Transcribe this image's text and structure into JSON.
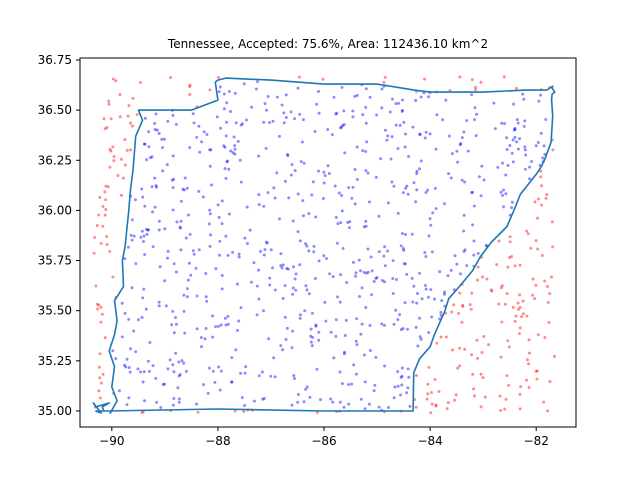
{
  "chart_data": {
    "type": "scatter",
    "title": "Tennessee, Accepted: 75.6%, Area: 112436.10 km^2",
    "xlabel": "",
    "ylabel": "",
    "xlim": [
      -90.6,
      -81.25
    ],
    "ylim": [
      34.92,
      36.76
    ],
    "xticks": [
      -90,
      -88,
      -86,
      -84,
      -82
    ],
    "xtick_labels": [
      "−90",
      "−88",
      "−86",
      "−84",
      "−82"
    ],
    "yticks": [
      35.0,
      35.25,
      35.5,
      35.75,
      36.0,
      36.25,
      36.5,
      36.75
    ],
    "ytick_labels": [
      "35.00",
      "35.25",
      "35.50",
      "35.75",
      "36.00",
      "36.25",
      "36.50",
      "36.75"
    ],
    "grid": false,
    "legend": "none",
    "series": [
      {
        "role": "accepted",
        "color": "#0000ff",
        "alpha": 0.45,
        "count": 760
      },
      {
        "role": "rejected",
        "color": "#ff0000",
        "alpha": 0.45,
        "count": 245
      },
      {
        "role": "boundary",
        "color": "#1f77b4",
        "x": [
          -90.31,
          -90.1,
          -88.0,
          -86.0,
          -84.32,
          -84.31,
          -84.2,
          -84.0,
          -83.92,
          -83.72,
          -83.65,
          -83.45,
          -83.2,
          -83.05,
          -82.85,
          -82.55,
          -82.42,
          -82.3,
          -82.18,
          -82.0,
          -81.9,
          -81.83,
          -81.72,
          -81.69,
          -81.71,
          -81.7,
          -81.65,
          -81.7,
          -81.69,
          -81.8,
          -82.2,
          -83.0,
          -83.67,
          -84.0,
          -84.3,
          -85.0,
          -86.0,
          -87.0,
          -87.85,
          -88.0,
          -88.05,
          -88.0,
          -88.5,
          -89.0,
          -89.5,
          -89.42,
          -89.55,
          -89.6,
          -89.65,
          -89.68,
          -89.72,
          -89.75,
          -89.8,
          -89.78,
          -89.95,
          -89.9,
          -89.95,
          -90.05,
          -89.95,
          -90.0,
          -89.9,
          -90.03,
          -90.0,
          -90.15,
          -90.18,
          -90.05,
          -90.3,
          -90.35,
          -90.2,
          -90.31
        ],
        "y": [
          35.0,
          35.0,
          35.01,
          35.0,
          35.0,
          35.19,
          35.26,
          35.32,
          35.38,
          35.5,
          35.56,
          35.62,
          35.7,
          35.77,
          35.84,
          35.92,
          36.0,
          36.08,
          36.12,
          36.18,
          36.22,
          36.26,
          36.34,
          36.47,
          36.55,
          36.58,
          36.59,
          36.61,
          36.62,
          36.6,
          36.6,
          36.59,
          36.59,
          36.59,
          36.6,
          36.63,
          36.63,
          36.65,
          36.66,
          36.65,
          36.64,
          36.55,
          36.5,
          36.5,
          36.5,
          36.45,
          36.37,
          36.2,
          36.1,
          36.0,
          35.9,
          35.82,
          35.75,
          35.62,
          35.55,
          35.45,
          35.38,
          35.3,
          35.22,
          35.12,
          35.05,
          34.99,
          35.0,
          35.0,
          35.02,
          35.04,
          35.02,
          35.04,
          34.99,
          35.0
        ]
      }
    ]
  }
}
